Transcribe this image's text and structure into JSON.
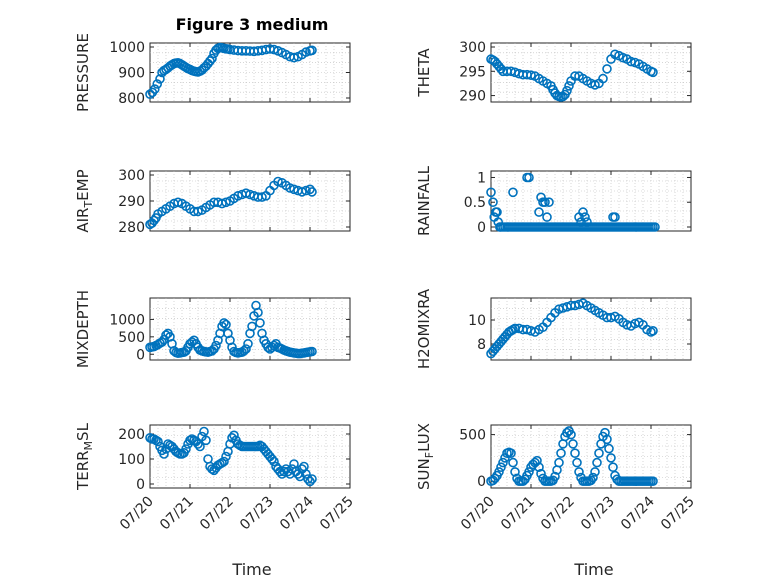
{
  "figure": {
    "title": "Figure 3 medium",
    "xlabel": "Time",
    "marker_color": "#0072bd"
  },
  "chart_data": [
    {
      "type": "scatter",
      "title": "Figure 3 medium",
      "ylabel": "PRESSURE",
      "ylabel_sub": "",
      "xlim": [
        0,
        4.2
      ],
      "ylim": [
        800,
        1000
      ],
      "yticks": [
        800,
        900,
        1000
      ],
      "xticks": [
        0,
        1,
        2,
        3,
        4,
        5
      ],
      "xticklabels": [],
      "grid": true,
      "x": [
        0.0,
        0.06,
        0.12,
        0.18,
        0.25,
        0.3,
        0.35,
        0.4,
        0.45,
        0.5,
        0.55,
        0.6,
        0.65,
        0.7,
        0.75,
        0.8,
        0.85,
        0.9,
        0.95,
        1.0,
        1.05,
        1.1,
        1.15,
        1.2,
        1.25,
        1.3,
        1.35,
        1.4,
        1.45,
        1.5,
        1.55,
        1.6,
        1.65,
        1.7,
        1.75,
        1.8,
        1.85,
        1.9,
        1.95,
        2.0,
        2.1,
        2.2,
        2.3,
        2.4,
        2.5,
        2.6,
        2.7,
        2.8,
        2.9,
        3.0,
        3.1,
        3.2,
        3.3,
        3.4,
        3.5,
        3.6,
        3.7,
        3.8,
        3.9,
        4.0,
        4.05
      ],
      "y": [
        815,
        822,
        835,
        855,
        875,
        900,
        908,
        912,
        918,
        925,
        930,
        935,
        937,
        938,
        935,
        930,
        925,
        920,
        915,
        912,
        908,
        905,
        903,
        902,
        905,
        910,
        918,
        925,
        935,
        945,
        955,
        975,
        988,
        995,
        998,
        997,
        995,
        993,
        992,
        990,
        988,
        986,
        985,
        985,
        984,
        983,
        985,
        987,
        990,
        992,
        990,
        985,
        978,
        970,
        962,
        958,
        962,
        970,
        980,
        985,
        987
      ]
    },
    {
      "type": "scatter",
      "title": "",
      "ylabel": "THETA",
      "ylabel_sub": "",
      "xlim": [
        0,
        4.2
      ],
      "ylim": [
        289.5,
        300
      ],
      "yticks": [
        290,
        295,
        300
      ],
      "xticks": [
        0,
        1,
        2,
        3,
        4,
        5
      ],
      "xticklabels": [],
      "grid": true,
      "x": [
        0.0,
        0.05,
        0.1,
        0.15,
        0.2,
        0.25,
        0.3,
        0.4,
        0.5,
        0.6,
        0.7,
        0.8,
        0.9,
        1.0,
        1.1,
        1.2,
        1.3,
        1.4,
        1.5,
        1.55,
        1.6,
        1.65,
        1.7,
        1.75,
        1.8,
        1.85,
        1.9,
        1.95,
        2.0,
        2.1,
        2.2,
        2.3,
        2.4,
        2.5,
        2.6,
        2.7,
        2.8,
        2.9,
        3.0,
        3.1,
        3.2,
        3.3,
        3.4,
        3.5,
        3.6,
        3.7,
        3.8,
        3.9,
        4.0,
        4.05
      ],
      "y": [
        297.5,
        297.3,
        297,
        296.5,
        296,
        295.5,
        295,
        295,
        295,
        294.8,
        294.5,
        294.3,
        294.3,
        294.2,
        294,
        293.5,
        293,
        292.5,
        292,
        291.2,
        290.5,
        290,
        289.8,
        289.7,
        289.8,
        290.2,
        291,
        292,
        293,
        294,
        294,
        293.5,
        293,
        292.5,
        292.2,
        292.5,
        293.5,
        295.5,
        297.5,
        298.5,
        298.2,
        297.8,
        297.5,
        297,
        296.8,
        296.5,
        296,
        295.5,
        295,
        294.8
      ]
    },
    {
      "type": "scatter",
      "title": "",
      "ylabel": "AIR",
      "ylabel_sub": "T",
      "ylabel_suffix": "EMP",
      "xlim": [
        0,
        4.2
      ],
      "ylim": [
        280,
        300
      ],
      "yticks": [
        280,
        290,
        300
      ],
      "xticks": [
        0,
        1,
        2,
        3,
        4,
        5
      ],
      "xticklabels": [],
      "grid": true,
      "x": [
        0.0,
        0.05,
        0.1,
        0.15,
        0.2,
        0.3,
        0.4,
        0.5,
        0.6,
        0.7,
        0.8,
        0.9,
        1.0,
        1.1,
        1.2,
        1.3,
        1.4,
        1.5,
        1.6,
        1.7,
        1.8,
        1.9,
        2.0,
        2.1,
        2.2,
        2.3,
        2.4,
        2.5,
        2.6,
        2.7,
        2.8,
        2.9,
        3.0,
        3.1,
        3.2,
        3.3,
        3.4,
        3.5,
        3.6,
        3.7,
        3.8,
        3.9,
        4.0,
        4.05
      ],
      "y": [
        281,
        281.5,
        282.5,
        283.5,
        285,
        286,
        287,
        288,
        289,
        289.5,
        289,
        288,
        287,
        286,
        286,
        286.5,
        287.5,
        288.5,
        289.5,
        289.5,
        289,
        289.5,
        290,
        291,
        292,
        292.5,
        293,
        292.5,
        292,
        291.5,
        291.5,
        292,
        294,
        296,
        297.5,
        297,
        296,
        295,
        294.5,
        294,
        293.5,
        294,
        294.5,
        293.5
      ]
    },
    {
      "type": "scatter",
      "title": "",
      "ylabel": "RAINFALL",
      "ylabel_sub": "",
      "xlim": [
        0,
        4.2
      ],
      "ylim": [
        0,
        1.05
      ],
      "yticks": [
        0,
        0.5,
        1
      ],
      "xticks": [
        0,
        1,
        2,
        3,
        4,
        5
      ],
      "xticklabels": [],
      "grid": true,
      "x": [
        0.0,
        0.05,
        0.08,
        0.12,
        0.15,
        0.18,
        0.22,
        0.25,
        0.3,
        0.35,
        0.4,
        0.45,
        0.5,
        0.55,
        0.6,
        0.65,
        0.7,
        0.75,
        0.8,
        0.85,
        0.9,
        0.95,
        1.0,
        1.05,
        1.1,
        1.15,
        1.2,
        1.25,
        1.3,
        1.35,
        1.4,
        1.45,
        1.5,
        1.55,
        1.6,
        1.65,
        1.7,
        1.75,
        1.8,
        1.85,
        1.9,
        1.95,
        2.0,
        2.05,
        2.1,
        2.15,
        2.2,
        2.25,
        2.3,
        2.35,
        2.4,
        2.45,
        2.5,
        2.55,
        2.6,
        2.65,
        2.7,
        2.75,
        2.8,
        2.85,
        2.9,
        2.95,
        3.0,
        3.05,
        3.1,
        3.15,
        3.2,
        3.25,
        3.3,
        3.35,
        3.4,
        3.45,
        3.5,
        3.55,
        3.6,
        3.65,
        3.7,
        3.75,
        3.8,
        3.85,
        3.9,
        3.95,
        4.0,
        4.05,
        4.1,
        0.55,
        0.9,
        0.95,
        1.2,
        1.25,
        1.3,
        1.35,
        1.45,
        1.4,
        2.2,
        2.25,
        2.3,
        2.35,
        2.4,
        3.05,
        3.1
      ],
      "y": [
        0.7,
        0.5,
        0.2,
        0.3,
        0.3,
        0.1,
        0,
        0,
        0,
        0,
        0,
        0,
        0,
        0,
        0,
        0,
        0,
        0,
        0,
        0,
        0,
        0,
        0,
        0,
        0,
        0,
        0,
        0,
        0,
        0,
        0,
        0,
        0,
        0,
        0,
        0,
        0,
        0,
        0,
        0,
        0,
        0,
        0,
        0,
        0,
        0,
        0,
        0,
        0,
        0,
        0,
        0,
        0,
        0,
        0,
        0,
        0,
        0,
        0,
        0,
        0,
        0,
        0,
        0,
        0,
        0,
        0,
        0,
        0,
        0,
        0,
        0,
        0,
        0,
        0,
        0,
        0,
        0,
        0,
        0,
        0,
        0,
        0,
        0,
        0,
        0.7,
        1,
        1,
        0.3,
        0.6,
        0.5,
        0.5,
        0.5,
        0.2,
        0.2,
        0.1,
        0.3,
        0.2,
        0.1,
        0.2,
        0.2
      ]
    },
    {
      "type": "scatter",
      "title": "",
      "ylabel": "MIXDEPTH",
      "ylabel_sub": "",
      "xlim": [
        0,
        4.2
      ],
      "ylim": [
        -50,
        1500
      ],
      "yticks": [
        0,
        500,
        1000
      ],
      "xticks": [
        0,
        1,
        2,
        3,
        4,
        5
      ],
      "xticklabels": [],
      "grid": true,
      "x": [
        0.0,
        0.05,
        0.1,
        0.15,
        0.2,
        0.25,
        0.3,
        0.35,
        0.4,
        0.45,
        0.5,
        0.55,
        0.6,
        0.65,
        0.7,
        0.75,
        0.8,
        0.85,
        0.9,
        0.95,
        1.0,
        1.05,
        1.1,
        1.15,
        1.2,
        1.25,
        1.3,
        1.35,
        1.4,
        1.45,
        1.5,
        1.55,
        1.6,
        1.65,
        1.7,
        1.75,
        1.8,
        1.85,
        1.9,
        1.95,
        2.0,
        2.05,
        2.1,
        2.15,
        2.2,
        2.25,
        2.3,
        2.35,
        2.4,
        2.45,
        2.5,
        2.55,
        2.6,
        2.65,
        2.7,
        2.75,
        2.8,
        2.85,
        2.9,
        2.95,
        3.0,
        3.05,
        3.1,
        3.15,
        3.2,
        3.25,
        3.3,
        3.35,
        3.4,
        3.45,
        3.5,
        3.55,
        3.6,
        3.65,
        3.7,
        3.75,
        3.8,
        3.85,
        3.9,
        3.95,
        4.0,
        4.05
      ],
      "y": [
        200,
        210,
        220,
        250,
        280,
        320,
        350,
        420,
        550,
        600,
        500,
        300,
        100,
        50,
        30,
        40,
        50,
        60,
        100,
        200,
        300,
        350,
        400,
        300,
        200,
        120,
        100,
        80,
        70,
        60,
        80,
        100,
        150,
        250,
        400,
        600,
        800,
        900,
        850,
        600,
        400,
        200,
        80,
        50,
        40,
        50,
        60,
        100,
        150,
        300,
        600,
        800,
        1100,
        1400,
        1200,
        900,
        600,
        400,
        300,
        200,
        150,
        200,
        250,
        300,
        200,
        180,
        150,
        120,
        100,
        80,
        60,
        50,
        40,
        30,
        20,
        20,
        30,
        40,
        50,
        60,
        70,
        80
      ]
    },
    {
      "type": "scatter",
      "title": "",
      "ylabel": "H2OMIXRA",
      "ylabel_sub": "",
      "xlim": [
        0,
        4.2
      ],
      "ylim": [
        7,
        11.5
      ],
      "yticks": [
        8,
        10
      ],
      "xticks": [
        0,
        1,
        2,
        3,
        4,
        5
      ],
      "xticklabels": [],
      "grid": true,
      "x": [
        0.0,
        0.05,
        0.1,
        0.15,
        0.2,
        0.25,
        0.3,
        0.35,
        0.4,
        0.45,
        0.5,
        0.55,
        0.6,
        0.7,
        0.8,
        0.9,
        1.0,
        1.1,
        1.2,
        1.3,
        1.4,
        1.5,
        1.6,
        1.7,
        1.8,
        1.9,
        2.0,
        2.1,
        2.2,
        2.3,
        2.4,
        2.5,
        2.6,
        2.7,
        2.8,
        2.9,
        3.0,
        3.1,
        3.2,
        3.3,
        3.4,
        3.5,
        3.6,
        3.7,
        3.8,
        3.9,
        4.0,
        4.05
      ],
      "y": [
        7.2,
        7.4,
        7.6,
        7.8,
        8.0,
        8.2,
        8.4,
        8.6,
        8.8,
        9.0,
        9.1,
        9.2,
        9.3,
        9.3,
        9.2,
        9.2,
        9.1,
        9.0,
        9.2,
        9.4,
        9.8,
        10.2,
        10.6,
        10.9,
        11.0,
        11.1,
        11.2,
        11.2,
        11.3,
        11.4,
        11.2,
        11.0,
        10.8,
        10.6,
        10.4,
        10.2,
        10.2,
        10.3,
        10.1,
        9.8,
        9.6,
        9.5,
        9.7,
        9.8,
        9.6,
        9.2,
        9.0,
        9.1
      ]
    },
    {
      "type": "scatter",
      "title": "",
      "ylabel": "TERR",
      "ylabel_sub": "M",
      "ylabel_suffix": "SL",
      "xlim": [
        0,
        4.2
      ],
      "ylim": [
        0,
        220
      ],
      "yticks": [
        0,
        100,
        200
      ],
      "xticks": [
        0,
        1,
        2,
        3,
        4,
        5
      ],
      "xticklabels": [
        "07/20",
        "07/21",
        "07/22",
        "07/23",
        "07/24",
        "07/25"
      ],
      "grid": true,
      "x": [
        0.0,
        0.05,
        0.1,
        0.15,
        0.2,
        0.25,
        0.3,
        0.35,
        0.4,
        0.45,
        0.5,
        0.55,
        0.6,
        0.65,
        0.7,
        0.75,
        0.8,
        0.85,
        0.9,
        0.95,
        1.0,
        1.05,
        1.1,
        1.15,
        1.2,
        1.25,
        1.3,
        1.35,
        1.4,
        1.45,
        1.5,
        1.55,
        1.6,
        1.65,
        1.7,
        1.75,
        1.8,
        1.85,
        1.9,
        1.95,
        2.0,
        2.05,
        2.1,
        2.15,
        2.2,
        2.25,
        2.3,
        2.35,
        2.4,
        2.45,
        2.5,
        2.55,
        2.6,
        2.65,
        2.7,
        2.75,
        2.8,
        2.85,
        2.9,
        2.95,
        3.0,
        3.05,
        3.1,
        3.15,
        3.2,
        3.25,
        3.3,
        3.35,
        3.4,
        3.45,
        3.5,
        3.55,
        3.6,
        3.65,
        3.7,
        3.75,
        3.8,
        3.85,
        3.9,
        3.95,
        4.0,
        4.05
      ],
      "y": [
        185,
        180,
        180,
        175,
        170,
        150,
        135,
        120,
        140,
        160,
        155,
        150,
        140,
        130,
        125,
        120,
        120,
        125,
        140,
        160,
        175,
        180,
        175,
        170,
        160,
        150,
        190,
        210,
        175,
        100,
        70,
        60,
        55,
        65,
        75,
        80,
        85,
        90,
        110,
        130,
        160,
        185,
        195,
        175,
        160,
        155,
        150,
        150,
        150,
        150,
        150,
        150,
        150,
        150,
        150,
        155,
        150,
        140,
        130,
        120,
        110,
        100,
        90,
        70,
        60,
        50,
        40,
        50,
        60,
        50,
        40,
        60,
        80,
        50,
        40,
        30,
        60,
        70,
        40,
        20,
        10,
        20
      ]
    },
    {
      "type": "scatter",
      "title": "",
      "ylabel": "SUN",
      "ylabel_sub": "F",
      "ylabel_suffix": "LUX",
      "xlim": [
        0,
        4.2
      ],
      "ylim": [
        -30,
        560
      ],
      "yticks": [
        0,
        500
      ],
      "xticks": [
        0,
        1,
        2,
        3,
        4,
        5
      ],
      "xticklabels": [
        "07/20",
        "07/21",
        "07/22",
        "07/23",
        "07/24",
        "07/25"
      ],
      "grid": true,
      "x": [
        0.0,
        0.05,
        0.1,
        0.15,
        0.2,
        0.25,
        0.3,
        0.35,
        0.4,
        0.45,
        0.5,
        0.55,
        0.6,
        0.65,
        0.7,
        0.75,
        0.8,
        0.85,
        0.9,
        0.95,
        1.0,
        1.05,
        1.1,
        1.15,
        1.2,
        1.25,
        1.3,
        1.35,
        1.4,
        1.45,
        1.5,
        1.55,
        1.6,
        1.65,
        1.7,
        1.75,
        1.8,
        1.85,
        1.9,
        1.95,
        2.0,
        2.05,
        2.1,
        2.15,
        2.2,
        2.25,
        2.3,
        2.35,
        2.4,
        2.45,
        2.5,
        2.55,
        2.6,
        2.65,
        2.7,
        2.75,
        2.8,
        2.85,
        2.9,
        2.95,
        3.0,
        3.05,
        3.1,
        3.15,
        3.2,
        3.25,
        3.3,
        3.35,
        3.4,
        3.45,
        3.5,
        3.55,
        3.6,
        3.65,
        3.7,
        3.75,
        3.8,
        3.85,
        3.9,
        3.95,
        4.0,
        4.05
      ],
      "y": [
        0,
        10,
        30,
        60,
        100,
        150,
        200,
        250,
        300,
        310,
        300,
        200,
        100,
        30,
        0,
        0,
        0,
        20,
        60,
        100,
        150,
        180,
        200,
        220,
        150,
        80,
        30,
        0,
        0,
        0,
        0,
        10,
        50,
        120,
        200,
        300,
        400,
        480,
        520,
        540,
        500,
        400,
        300,
        200,
        100,
        40,
        0,
        0,
        0,
        0,
        10,
        40,
        100,
        200,
        300,
        400,
        480,
        520,
        450,
        350,
        250,
        150,
        60,
        20,
        0,
        0,
        0,
        0,
        0,
        0,
        0,
        0,
        0,
        0,
        0,
        0,
        0,
        0,
        0,
        0,
        0,
        0
      ]
    }
  ]
}
